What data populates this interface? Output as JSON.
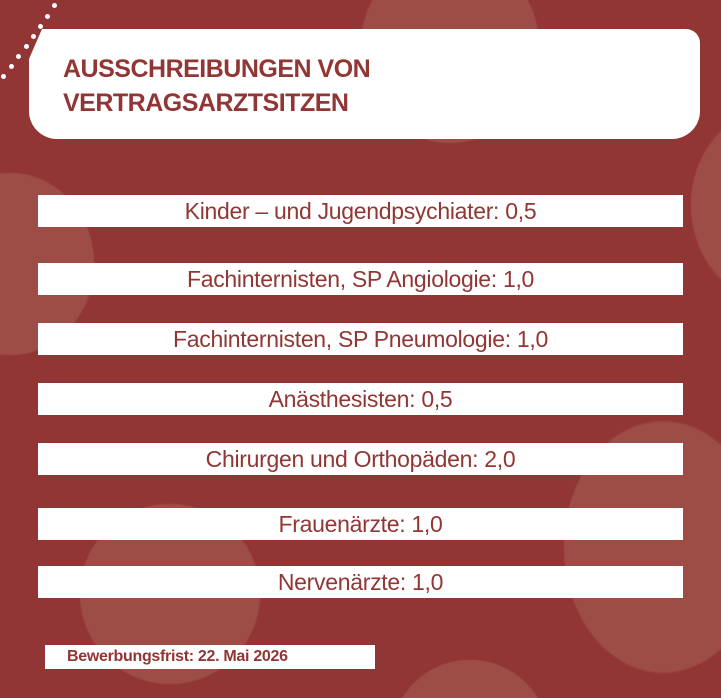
{
  "title": "AUSSCHREIBUNGEN VON VERTRAGSARZTSITZEN",
  "title_lines": [
    "AUSSCHREIBUNGEN VON",
    "VERTRAGSARZTSITZEN"
  ],
  "items": [
    "Kinder – und Jugendpsychiater: 0,5",
    "Fachinternisten, SP Angiologie: 1,0",
    "Fachinternisten, SP Pneumologie: 1,0",
    "Anästhesisten: 0,5",
    "Chirurgen und Orthopäden: 2,0",
    "Frauenärzte: 1,0",
    "Nervenärzte: 1,0"
  ],
  "deadline": "Bewerbungsfrist: 22. Mai 2026",
  "colors": {
    "background": "#913634",
    "circle": "#9d4d46",
    "text": "#913634",
    "box": "#ffffff"
  }
}
